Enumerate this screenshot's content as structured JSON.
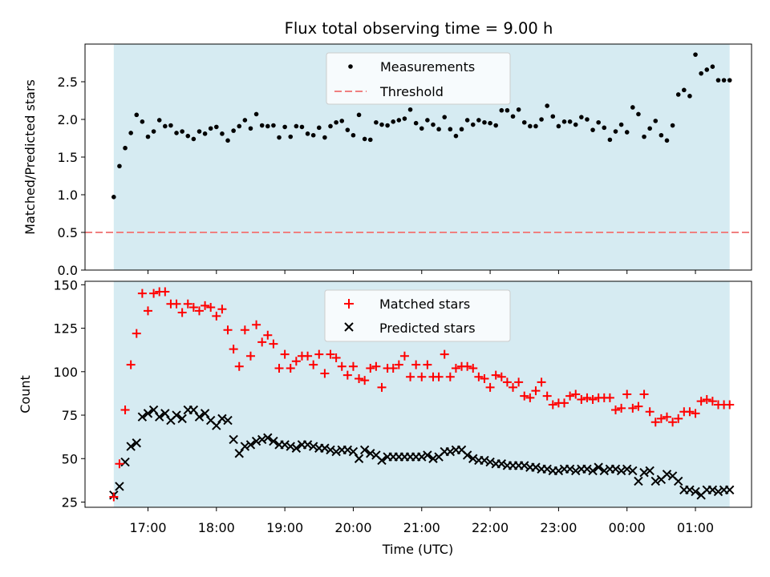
{
  "title": "Flux total observing time = 9.00 h",
  "xlabel": "Time (UTC)",
  "x_tick_labels": [
    "17:00",
    "18:00",
    "19:00",
    "20:00",
    "21:00",
    "22:00",
    "23:00",
    "00:00",
    "01:00"
  ],
  "colors": {
    "observing_band": "#add8e6",
    "measurement": "#000000",
    "threshold": "#f08080",
    "matched": "#ff0000",
    "predicted": "#000000"
  },
  "chart_data": [
    {
      "type": "scatter",
      "ylabel": "Matched/Predicted stars",
      "ylim": [
        0,
        3.0
      ],
      "yticks": [
        0.0,
        0.5,
        1.0,
        1.5,
        2.0,
        2.5
      ],
      "ytick_labels": [
        "0.0",
        "0.5",
        "1.0",
        "1.5",
        "2.0",
        "2.5"
      ],
      "xlim_hours": [
        16.08,
        25.82
      ],
      "observing_span": [
        "16:30",
        "01:30"
      ],
      "legend": {
        "placement": "upper center",
        "entries": [
          "Measurements",
          "Threshold"
        ]
      },
      "threshold": 0.5,
      "series": [
        {
          "name": "Measurements",
          "marker": "dot",
          "x": [
            "16:30",
            "16:35",
            "16:40",
            "16:45",
            "16:50",
            "16:55",
            "17:00",
            "17:05",
            "17:10",
            "17:15",
            "17:20",
            "17:25",
            "17:30",
            "17:35",
            "17:40",
            "17:45",
            "17:50",
            "17:55",
            "18:00",
            "18:05",
            "18:10",
            "18:15",
            "18:20",
            "18:25",
            "18:30",
            "18:35",
            "18:40",
            "18:45",
            "18:50",
            "18:55",
            "19:00",
            "19:05",
            "19:10",
            "19:15",
            "19:20",
            "19:25",
            "19:30",
            "19:35",
            "19:40",
            "19:45",
            "19:50",
            "19:55",
            "20:00",
            "20:05",
            "20:10",
            "20:15",
            "20:20",
            "20:25",
            "20:30",
            "20:35",
            "20:40",
            "20:45",
            "20:50",
            "20:55",
            "21:00",
            "21:05",
            "21:10",
            "21:15",
            "21:20",
            "21:25",
            "21:30",
            "21:35",
            "21:40",
            "21:45",
            "21:50",
            "21:55",
            "22:00",
            "22:05",
            "22:10",
            "22:15",
            "22:20",
            "22:25",
            "22:30",
            "22:35",
            "22:40",
            "22:45",
            "22:50",
            "22:55",
            "23:00",
            "23:05",
            "23:10",
            "23:15",
            "23:20",
            "23:25",
            "23:30",
            "23:35",
            "23:40",
            "23:45",
            "23:50",
            "23:55",
            "00:00",
            "00:05",
            "00:10",
            "00:15",
            "00:20",
            "00:25",
            "00:30",
            "00:35",
            "00:40",
            "00:45",
            "00:50",
            "00:55",
            "01:00",
            "01:05",
            "01:10",
            "01:15",
            "01:20",
            "01:25",
            "01:30"
          ],
          "y": [
            0.97,
            1.38,
            1.62,
            1.82,
            2.06,
            1.97,
            1.77,
            1.84,
            1.99,
            1.91,
            1.92,
            1.82,
            1.84,
            1.78,
            1.74,
            1.84,
            1.81,
            1.88,
            1.9,
            1.81,
            1.72,
            1.85,
            1.91,
            1.99,
            1.88,
            2.07,
            1.92,
            1.91,
            1.92,
            1.76,
            1.9,
            1.77,
            1.91,
            1.9,
            1.81,
            1.79,
            1.89,
            1.76,
            1.91,
            1.96,
            1.98,
            1.86,
            1.79,
            2.06,
            1.74,
            1.73,
            1.96,
            1.93,
            1.92,
            1.97,
            1.99,
            2.01,
            2.13,
            1.95,
            1.88,
            1.99,
            1.93,
            1.87,
            2.03,
            1.87,
            1.78,
            1.87,
            1.99,
            1.93,
            1.99,
            1.96,
            1.95,
            1.92,
            2.12,
            2.12,
            2.04,
            2.13,
            1.96,
            1.91,
            1.91,
            2.0,
            2.18,
            2.04,
            1.91,
            1.97,
            1.97,
            1.93,
            2.03,
            2.0,
            1.86,
            1.96,
            1.89,
            1.73,
            1.84,
            1.93,
            1.83,
            2.16,
            2.07,
            1.77,
            1.88,
            1.98,
            1.79,
            1.72,
            1.92,
            2.33,
            2.39,
            2.31,
            2.86,
            2.61,
            2.66,
            2.7,
            2.52,
            2.52,
            2.52
          ]
        }
      ]
    },
    {
      "type": "scatter",
      "ylabel": "Count",
      "ylim": [
        22,
        152
      ],
      "yticks": [
        25,
        50,
        75,
        100,
        125,
        150
      ],
      "ytick_labels": [
        "25",
        "50",
        "75",
        "100",
        "125",
        "150"
      ],
      "xlim_hours": [
        16.08,
        25.82
      ],
      "observing_span": [
        "16:30",
        "01:30"
      ],
      "legend": {
        "placement": "upper center",
        "entries": [
          "Matched stars",
          "Predicted stars"
        ]
      },
      "series": [
        {
          "name": "Matched stars",
          "marker": "plus",
          "x": [
            "16:30",
            "16:35",
            "16:40",
            "16:45",
            "16:50",
            "16:55",
            "17:00",
            "17:05",
            "17:10",
            "17:15",
            "17:20",
            "17:25",
            "17:30",
            "17:35",
            "17:40",
            "17:45",
            "17:50",
            "17:55",
            "18:00",
            "18:05",
            "18:10",
            "18:15",
            "18:20",
            "18:25",
            "18:30",
            "18:35",
            "18:40",
            "18:45",
            "18:50",
            "18:55",
            "19:00",
            "19:05",
            "19:10",
            "19:15",
            "19:20",
            "19:25",
            "19:30",
            "19:35",
            "19:40",
            "19:45",
            "19:50",
            "19:55",
            "20:00",
            "20:05",
            "20:10",
            "20:15",
            "20:20",
            "20:25",
            "20:30",
            "20:35",
            "20:40",
            "20:45",
            "20:50",
            "20:55",
            "21:00",
            "21:05",
            "21:10",
            "21:15",
            "21:20",
            "21:25",
            "21:30",
            "21:35",
            "21:40",
            "21:45",
            "21:50",
            "21:55",
            "22:00",
            "22:05",
            "22:10",
            "22:15",
            "22:20",
            "22:25",
            "22:30",
            "22:35",
            "22:40",
            "22:45",
            "22:50",
            "22:55",
            "23:00",
            "23:05",
            "23:10",
            "23:15",
            "23:20",
            "23:25",
            "23:30",
            "23:35",
            "23:40",
            "23:45",
            "23:50",
            "23:55",
            "00:00",
            "00:05",
            "00:10",
            "00:15",
            "00:20",
            "00:25",
            "00:30",
            "00:35",
            "00:40",
            "00:45",
            "00:50",
            "00:55",
            "01:00",
            "01:05",
            "01:10",
            "01:15",
            "01:20",
            "01:25",
            "01:30"
          ],
          "y": [
            28,
            47,
            78,
            104,
            122,
            145,
            135,
            145,
            146,
            146,
            139,
            139,
            134,
            139,
            137,
            135,
            138,
            137,
            132,
            136,
            124,
            113,
            103,
            124,
            109,
            127,
            117,
            121,
            116,
            102,
            110,
            102,
            106,
            109,
            109,
            104,
            110,
            99,
            110,
            108,
            103,
            98,
            103,
            96,
            95,
            102,
            103,
            91,
            102,
            102,
            104,
            109,
            97,
            104,
            97,
            104,
            97,
            97,
            110,
            97,
            102,
            103,
            103,
            102,
            97,
            96,
            91,
            98,
            97,
            94,
            91,
            94,
            86,
            85,
            89,
            94,
            86,
            81,
            82,
            82,
            86,
            87,
            84,
            85,
            84,
            85,
            85,
            85,
            78,
            79,
            87,
            79,
            80,
            87,
            77,
            71,
            73,
            74,
            71,
            73,
            77,
            77,
            76,
            83,
            84,
            83,
            81,
            81,
            81
          ]
        },
        {
          "name": "Predicted stars",
          "marker": "x",
          "x": [
            "16:30",
            "16:35",
            "16:40",
            "16:45",
            "16:50",
            "16:55",
            "17:00",
            "17:05",
            "17:10",
            "17:15",
            "17:20",
            "17:25",
            "17:30",
            "17:35",
            "17:40",
            "17:45",
            "17:50",
            "17:55",
            "18:00",
            "18:05",
            "18:10",
            "18:15",
            "18:20",
            "18:25",
            "18:30",
            "18:35",
            "18:40",
            "18:45",
            "18:50",
            "18:55",
            "19:00",
            "19:05",
            "19:10",
            "19:15",
            "19:20",
            "19:25",
            "19:30",
            "19:35",
            "19:40",
            "19:45",
            "19:50",
            "19:55",
            "20:00",
            "20:05",
            "20:10",
            "20:15",
            "20:20",
            "20:25",
            "20:30",
            "20:35",
            "20:40",
            "20:45",
            "20:50",
            "20:55",
            "21:00",
            "21:05",
            "21:10",
            "21:15",
            "21:20",
            "21:25",
            "21:30",
            "21:35",
            "21:40",
            "21:45",
            "21:50",
            "21:55",
            "22:00",
            "22:05",
            "22:10",
            "22:15",
            "22:20",
            "22:25",
            "22:30",
            "22:35",
            "22:40",
            "22:45",
            "22:50",
            "22:55",
            "23:00",
            "23:05",
            "23:10",
            "23:15",
            "23:20",
            "23:25",
            "23:30",
            "23:35",
            "23:40",
            "23:45",
            "23:50",
            "23:55",
            "00:00",
            "00:05",
            "00:10",
            "00:15",
            "00:20",
            "00:25",
            "00:30",
            "00:35",
            "00:40",
            "00:45",
            "00:50",
            "00:55",
            "01:00",
            "01:05",
            "01:10",
            "01:15",
            "01:20",
            "01:25",
            "01:30"
          ],
          "y": [
            29,
            34,
            48,
            57,
            59,
            74,
            76,
            78,
            74,
            76,
            72,
            75,
            73,
            78,
            78,
            74,
            76,
            72,
            69,
            73,
            72,
            61,
            53,
            57,
            58,
            60,
            61,
            62,
            60,
            58,
            58,
            57,
            56,
            58,
            58,
            57,
            56,
            56,
            55,
            54,
            55,
            55,
            54,
            50,
            55,
            53,
            52,
            49,
            51,
            51,
            51,
            51,
            51,
            51,
            51,
            52,
            50,
            51,
            54,
            54,
            55,
            55,
            52,
            50,
            49,
            49,
            48,
            47,
            47,
            46,
            46,
            46,
            46,
            45,
            45,
            44,
            44,
            43,
            43,
            44,
            44,
            43,
            44,
            44,
            43,
            45,
            43,
            44,
            44,
            43,
            44,
            43,
            37,
            42,
            43,
            37,
            38,
            41,
            40,
            37,
            32,
            32,
            31,
            29,
            32,
            32,
            31,
            32,
            32
          ]
        }
      ]
    }
  ]
}
